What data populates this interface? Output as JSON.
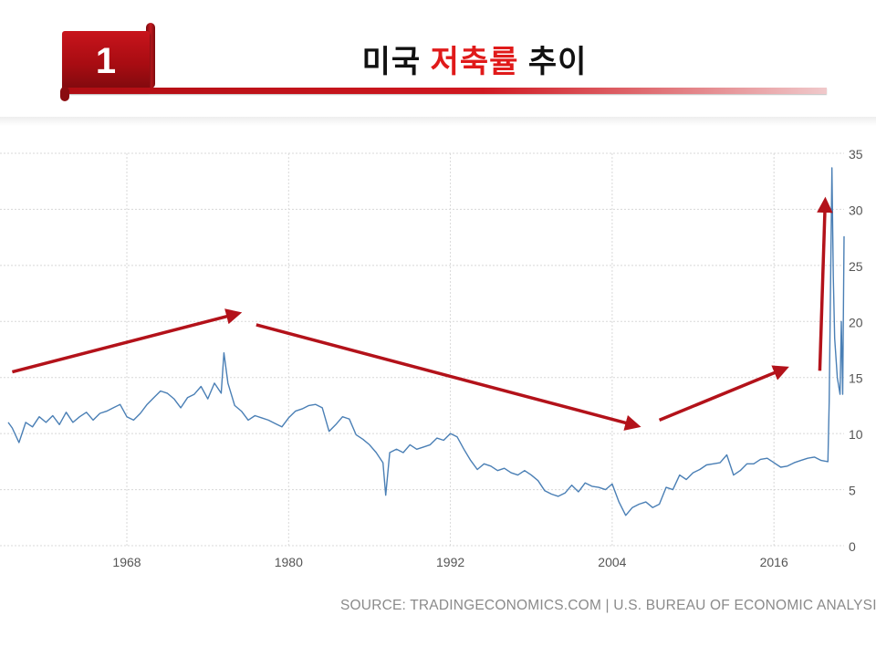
{
  "header": {
    "number": "1",
    "title_prefix": "미국 ",
    "title_accent": "저축률",
    "title_suffix": " 추이"
  },
  "colors": {
    "accent": "#e01a1a",
    "brand_red": "#b00d13",
    "line": "#4a7fb5",
    "arrow": "#b3121a"
  },
  "chart_data": {
    "type": "line",
    "title": "",
    "xlabel": "",
    "ylabel": "",
    "x_ticks": [
      1968,
      1980,
      1992,
      2004,
      2016
    ],
    "y_ticks": [
      0,
      5,
      10,
      15,
      20,
      25,
      30,
      35
    ],
    "xlim": [
      1959.2,
      2021.2
    ],
    "ylim": [
      0,
      35
    ],
    "grid": true,
    "y_axis_side": "right",
    "series": [
      {
        "x": [
          1959.2,
          1959.5,
          1960.0,
          1960.5,
          1961.0,
          1961.5,
          1962.0,
          1962.5,
          1963.0,
          1963.5,
          1964.0,
          1964.5,
          1965.0,
          1965.5,
          1966.0,
          1966.5,
          1967.0,
          1967.5,
          1968.0,
          1968.5,
          1969.0,
          1969.5,
          1970.0,
          1970.5,
          1971.0,
          1971.5,
          1972.0,
          1972.5,
          1973.0,
          1973.5,
          1974.0,
          1974.5,
          1975.0,
          1975.2,
          1975.5,
          1976.0,
          1976.5,
          1977.0,
          1977.5,
          1978.0,
          1978.5,
          1979.0,
          1979.5,
          1980.0,
          1980.5,
          1981.0,
          1981.5,
          1982.0,
          1982.5,
          1983.0,
          1983.5,
          1984.0,
          1984.5,
          1985.0,
          1985.5,
          1986.0,
          1986.5,
          1987.0,
          1987.2,
          1987.5,
          1988.0,
          1988.5,
          1989.0,
          1989.5,
          1990.0,
          1990.5,
          1991.0,
          1991.5,
          1992.0,
          1992.5,
          1993.0,
          1993.5,
          1994.0,
          1994.5,
          1995.0,
          1995.5,
          1996.0,
          1996.5,
          1997.0,
          1997.5,
          1998.0,
          1998.5,
          1999.0,
          1999.5,
          2000.0,
          2000.5,
          2001.0,
          2001.5,
          2002.0,
          2002.5,
          2003.0,
          2003.5,
          2004.0,
          2004.5,
          2005.0,
          2005.5,
          2006.0,
          2006.5,
          2007.0,
          2007.5,
          2008.0,
          2008.5,
          2009.0,
          2009.5,
          2010.0,
          2010.5,
          2011.0,
          2011.5,
          2012.0,
          2012.5,
          2013.0,
          2013.5,
          2014.0,
          2014.5,
          2015.0,
          2015.5,
          2016.0,
          2016.5,
          2017.0,
          2017.5,
          2018.0,
          2018.5,
          2019.0,
          2019.5,
          2020.0,
          2020.1,
          2020.3,
          2020.4,
          2020.5,
          2020.7,
          2020.9,
          2021.0,
          2021.1,
          2021.2
        ],
        "values": [
          11.0,
          10.5,
          9.2,
          11.0,
          10.6,
          11.5,
          11.0,
          11.6,
          10.8,
          11.9,
          11.0,
          11.5,
          11.9,
          11.2,
          11.8,
          12.0,
          12.3,
          12.6,
          11.5,
          11.2,
          11.8,
          12.6,
          13.2,
          13.8,
          13.6,
          13.1,
          12.3,
          13.2,
          13.5,
          14.2,
          13.1,
          14.5,
          13.6,
          17.2,
          14.5,
          12.5,
          12.0,
          11.2,
          11.6,
          11.4,
          11.2,
          10.9,
          10.6,
          11.4,
          12.0,
          12.2,
          12.5,
          12.6,
          12.3,
          10.2,
          10.8,
          11.5,
          11.3,
          9.9,
          9.5,
          9.0,
          8.3,
          7.4,
          4.5,
          8.3,
          8.6,
          8.3,
          9.0,
          8.6,
          8.8,
          9.0,
          9.6,
          9.4,
          10.0,
          9.7,
          8.6,
          7.6,
          6.8,
          7.3,
          7.1,
          6.7,
          6.9,
          6.5,
          6.3,
          6.7,
          6.3,
          5.8,
          4.9,
          4.6,
          4.4,
          4.7,
          5.4,
          4.8,
          5.6,
          5.3,
          5.2,
          5.0,
          5.5,
          3.9,
          2.7,
          3.4,
          3.7,
          3.9,
          3.4,
          3.7,
          5.2,
          5.0,
          6.3,
          5.9,
          6.5,
          6.8,
          7.2,
          7.3,
          7.4,
          8.1,
          6.3,
          6.7,
          7.3,
          7.3,
          7.7,
          7.8,
          7.4,
          7.0,
          7.1,
          7.4,
          7.6,
          7.8,
          7.9,
          7.6,
          7.5,
          12.8,
          33.7,
          24.0,
          18.5,
          15.0,
          13.5,
          20.0,
          13.5,
          27.6
        ]
      }
    ],
    "arrows": [
      {
        "from": [
          1959.5,
          15.5
        ],
        "to": [
          1976.2,
          20.7
        ]
      },
      {
        "from": [
          1977.6,
          19.7
        ],
        "to": [
          2005.8,
          10.7
        ]
      },
      {
        "from": [
          2007.5,
          11.2
        ],
        "to": [
          2016.8,
          15.8
        ]
      },
      {
        "from": [
          2019.4,
          15.6
        ],
        "to": [
          2019.8,
          30.7
        ]
      }
    ]
  },
  "source_text": "SOURCE: TRADINGECONOMICS.COM | U.S. BUREAU OF ECONOMIC ANALYSIS"
}
